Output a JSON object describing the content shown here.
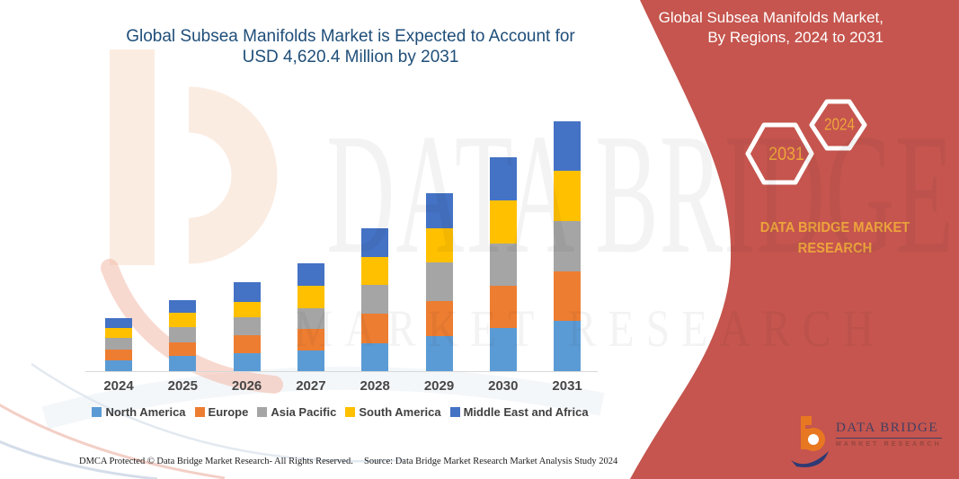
{
  "theme": {
    "title_blue": "#1F4E79",
    "banner_red": "#C5554E",
    "gold": "#EDA43C",
    "logo_navy": "#433F63",
    "logo_maroon": "#96463E",
    "axis_text": "#474747",
    "legend_text": "#404040",
    "logo_orange": "#E87722"
  },
  "chart_title": {
    "line1": "Global Subsea Manifolds Market is Expected to Account for",
    "line2": "USD 4,620.4 Million by 2031"
  },
  "chart_data": {
    "type": "bar",
    "stacked": true,
    "title": "Global Subsea Manifolds Market is Expected to Account for USD 4,620.4 Million by 2031",
    "categories": [
      "2024",
      "2025",
      "2026",
      "2027",
      "2028",
      "2029",
      "2030",
      "2031"
    ],
    "series": [
      {
        "name": "North America",
        "color": "#5B9BD5",
        "values": [
          195,
          278,
          334,
          389,
          515,
          650,
          790,
          929
        ]
      },
      {
        "name": "Europe",
        "color": "#ED7D31",
        "values": [
          205,
          250,
          334,
          389,
          545,
          640,
          780,
          917
        ]
      },
      {
        "name": "Asia Pacific",
        "color": "#A5A5A5",
        "values": [
          212,
          278,
          334,
          389,
          530,
          712,
          795,
          934
        ]
      },
      {
        "name": "South America",
        "color": "#FFC000",
        "values": [
          183,
          278,
          278,
          417,
          515,
          640,
          790,
          929
        ]
      },
      {
        "name": "Middle East and Africa",
        "color": "#4472C4",
        "values": [
          188,
          222,
          372,
          405,
          535,
          650,
          805,
          911.4
        ]
      }
    ],
    "values_unit": "USD Million (estimated from bar heights; 2031 total = 4620.4)",
    "xlabel": "",
    "ylabel": "",
    "ylim": [
      0,
      4700
    ],
    "grid": false,
    "legend_position": "bottom"
  },
  "banner": {
    "heading": "Global Subsea Manifolds Market, By Regions, 2024 to 2031",
    "hex_large_label": "2031",
    "hex_small_label": "2024",
    "brand_line1": "DATA BRIDGE MARKET",
    "brand_line2": "RESEARCH"
  },
  "watermark": {
    "big_text": "DATA BRIDGE",
    "spaced_text": "MARKET RESEARCH"
  },
  "logo": {
    "name": "DATA BRIDGE",
    "subtitle": "MARKET RESEARCH"
  },
  "footer": {
    "left": "DMCA Protected © Data Bridge Market Research-  All Rights Reserved.",
    "source": "Source: Data Bridge Market Research  Market Analysis Study 2024"
  }
}
